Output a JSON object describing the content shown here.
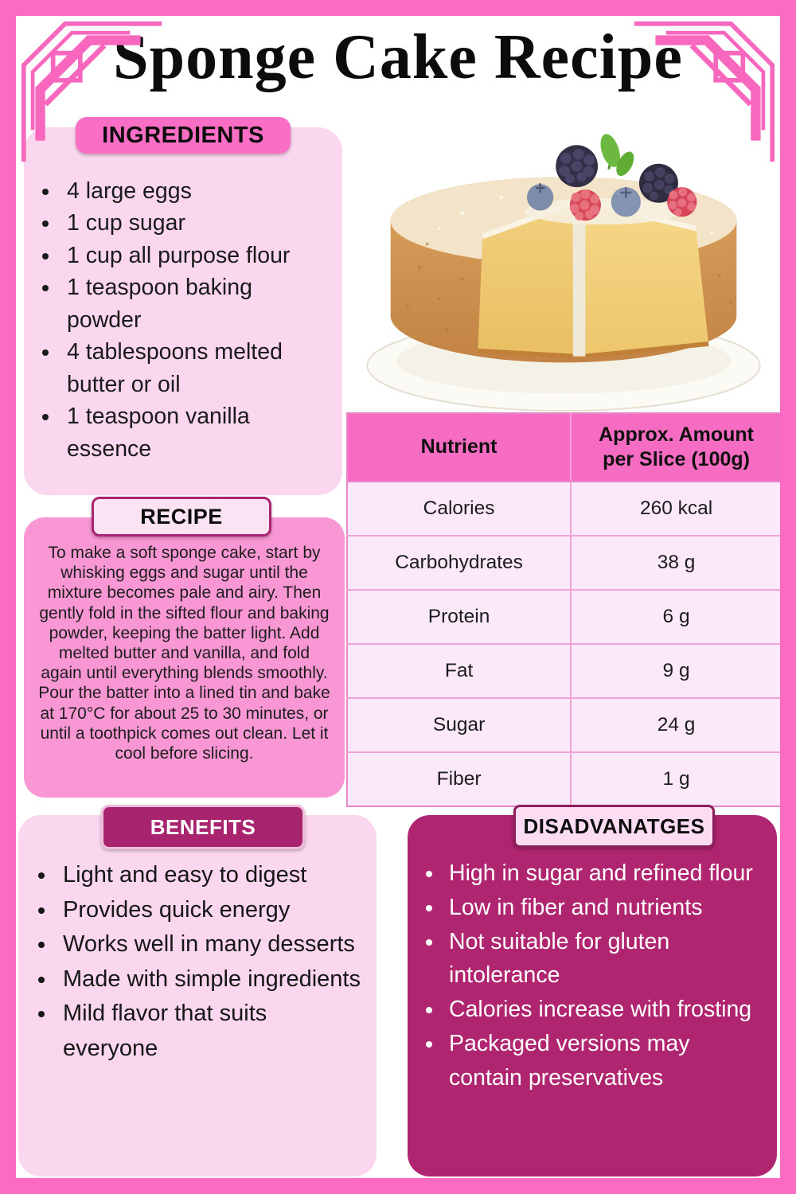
{
  "page": {
    "title": "Sponge Cake Recipe"
  },
  "ingredients": {
    "header": "INGREDIENTS",
    "items": [
      "4 large eggs",
      "1 cup sugar",
      "1 cup all purpose flour",
      "1 teaspoon baking powder",
      "4 tablespoons melted butter or oil",
      "1 teaspoon vanilla essence"
    ]
  },
  "recipe": {
    "header": "RECIPE",
    "text": "To make a soft sponge cake, start by whisking eggs and sugar until the mixture becomes pale and airy. Then gently fold in the sifted flour and baking powder, keeping the batter light. Add melted butter and vanilla, and fold again until everything blends smoothly. Pour the batter into a lined tin and bake at 170°C for about 25 to 30 minutes, or until a toothpick comes out clean. Let it cool before slicing."
  },
  "nutrition_table": {
    "columns": [
      "Nutrient",
      "Approx. Amount per Slice (100g)"
    ],
    "rows": [
      [
        "Calories",
        "260 kcal"
      ],
      [
        "Carbohydrates",
        "38 g"
      ],
      [
        "Protein",
        "6 g"
      ],
      [
        "Fat",
        "9 g"
      ],
      [
        "Sugar",
        "24 g"
      ],
      [
        "Fiber",
        "1 g"
      ]
    ]
  },
  "benefits": {
    "header": "BENEFITS",
    "items": [
      "Light and easy to digest",
      "Provides quick energy",
      "Works well in many desserts",
      "Made with simple ingredients",
      "Mild flavor that suits everyone"
    ]
  },
  "disadvantages": {
    "header": "DISADVANATGES",
    "items": [
      "High in sugar and refined flour",
      "Low in fiber and nutrients",
      "Not suitable for gluten intolerance",
      "Calories increase with frosting",
      "Packaged versions may contain preservatives"
    ]
  },
  "cake_image": {
    "description": "Sponge cake with a cut slice, dusted with powdered sugar, topped with blackberries, blueberries, raspberries and mint, on a white plate"
  },
  "colors": {
    "frame_pink": "#FB6BC1",
    "tab_pink": "#FB6EC6",
    "light_pink_box": "#FAD7EE",
    "recipe_pink_box": "#F997D4",
    "magenta": "#B0256F",
    "table_header_pink": "#F66CC2",
    "table_row_pink": "#FBE9F9"
  }
}
